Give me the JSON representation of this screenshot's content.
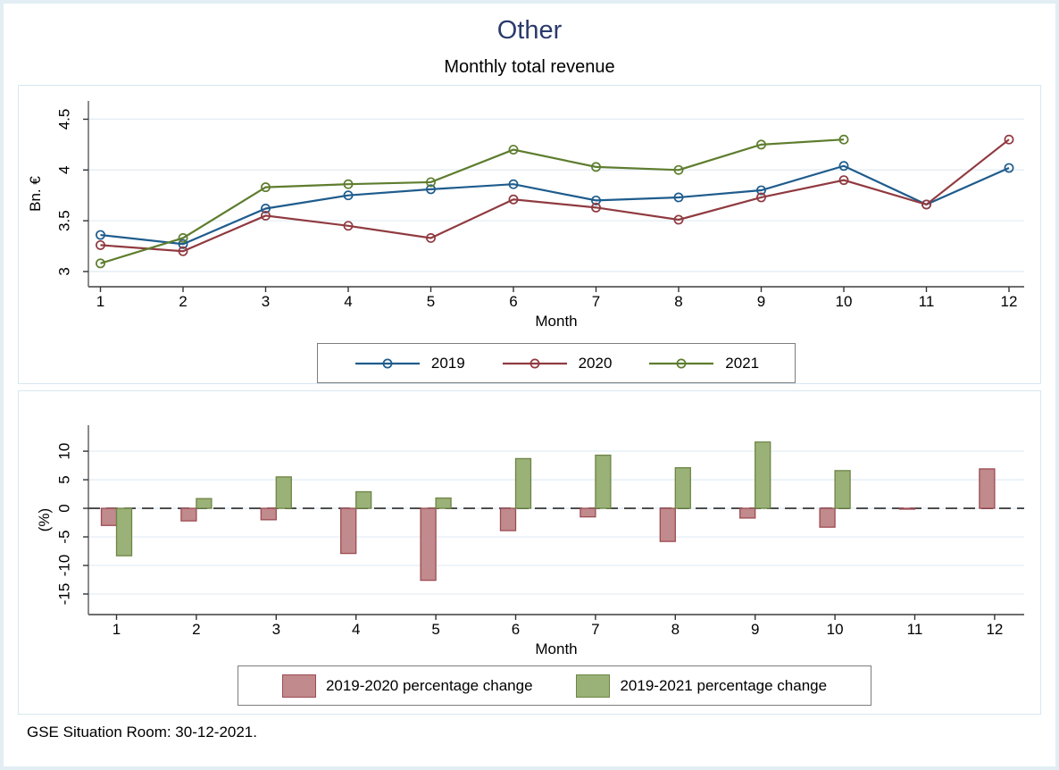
{
  "page": {
    "title": "Other",
    "subtitle": "Monthly total revenue",
    "footer": "GSE Situation Room: 30-12-2021."
  },
  "colors": {
    "title_text": "#2b3a6d",
    "page_border": "#e2eef3",
    "panel_border": "#d8e7f0",
    "gridline": "#e4edf5",
    "axis": "#6e6e6e",
    "zero_line": "#444444",
    "legend_border": "#7d7d7d"
  },
  "chart_data": [
    {
      "type": "line",
      "title": "Monthly total revenue",
      "xlabel": "Month",
      "ylabel": "Bn. €",
      "x": [
        1,
        2,
        3,
        4,
        5,
        6,
        7,
        8,
        9,
        10,
        11,
        12
      ],
      "xticks": [
        "1",
        "2",
        "3",
        "4",
        "5",
        "6",
        "7",
        "8",
        "9",
        "10",
        "11",
        "12"
      ],
      "yticks": [
        3,
        3.5,
        4,
        4.5
      ],
      "ytick_labels": [
        "3",
        "3.5",
        "4",
        "4.5"
      ],
      "ylim": [
        2.85,
        4.68
      ],
      "grid": true,
      "legend_position": "bottom",
      "marker": "circle-hollow",
      "series": [
        {
          "name": "2019",
          "color": "#1e5c8d",
          "values": [
            3.36,
            3.27,
            3.62,
            3.75,
            3.81,
            3.86,
            3.7,
            3.73,
            3.8,
            4.04,
            3.66,
            4.02
          ]
        },
        {
          "name": "2020",
          "color": "#903a40",
          "values": [
            3.26,
            3.2,
            3.55,
            3.45,
            3.33,
            3.71,
            3.63,
            3.51,
            3.73,
            3.9,
            3.66,
            4.3
          ]
        },
        {
          "name": "2021",
          "color": "#5e7d2e",
          "values": [
            3.08,
            3.33,
            3.83,
            3.86,
            3.88,
            4.2,
            4.03,
            4.0,
            4.25,
            4.3,
            null,
            null
          ]
        }
      ]
    },
    {
      "type": "bar",
      "xlabel": "Month",
      "ylabel": "(%)",
      "categories": [
        1,
        2,
        3,
        4,
        5,
        6,
        7,
        8,
        9,
        10,
        11,
        12
      ],
      "xticks": [
        "1",
        "2",
        "3",
        "4",
        "5",
        "6",
        "7",
        "8",
        "9",
        "10",
        "11",
        "12"
      ],
      "yticks": [
        -15,
        -10,
        -5,
        0,
        5,
        10
      ],
      "ytick_labels": [
        "-15",
        "-10",
        "-5",
        "0",
        "5",
        "10"
      ],
      "ylim": [
        -18.6,
        14.55
      ],
      "grid": true,
      "zero_line_style": "dashed",
      "legend_position": "bottom",
      "series": [
        {
          "name": "2019-2020 percentage change",
          "fill": "#c18a8d",
          "border": "#9c4b52",
          "values": [
            -3.0,
            -2.2,
            -2.0,
            -7.9,
            -12.6,
            -3.9,
            -1.5,
            -5.8,
            -1.7,
            -3.3,
            -0.15,
            6.9
          ]
        },
        {
          "name": "2019-2021 percentage change",
          "fill": "#9ab177",
          "border": "#6e8546",
          "values": [
            -8.3,
            1.7,
            5.5,
            2.9,
            1.8,
            8.7,
            9.3,
            7.1,
            11.6,
            6.6,
            null,
            null
          ]
        }
      ]
    }
  ]
}
